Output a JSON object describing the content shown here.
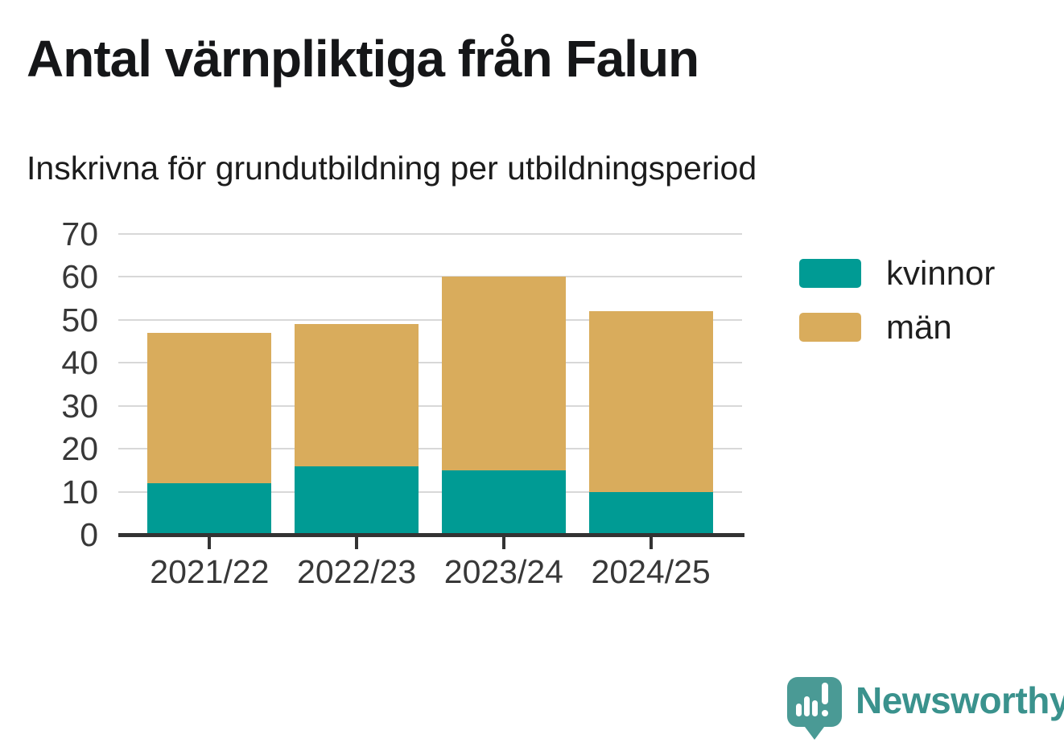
{
  "header": {
    "title": "Antal värnpliktiga från Falun",
    "subtitle": "Inskrivna för grundutbildning per utbildningsperiod"
  },
  "chart_data": {
    "type": "bar",
    "stacked": true,
    "title": "Antal värnpliktiga från Falun",
    "subtitle": "Inskrivna för grundutbildning per utbildningsperiod",
    "categories": [
      "2021/22",
      "2022/23",
      "2023/24",
      "2024/25"
    ],
    "series": [
      {
        "name": "kvinnor",
        "color": "#009b94",
        "values": [
          12,
          16,
          15,
          10
        ]
      },
      {
        "name": "män",
        "color": "#d9ac5c",
        "values": [
          35,
          33,
          45,
          42
        ]
      }
    ],
    "stack_totals": [
      47,
      49,
      60,
      52
    ],
    "xlabel": "",
    "ylabel": "",
    "ylim": [
      0,
      70
    ],
    "yticks": [
      0,
      10,
      20,
      30,
      40,
      50,
      60,
      70
    ],
    "grid": "horizontal",
    "grid_color": "#d8d8d8",
    "axis_color": "#333333",
    "tick_label_color": "#383838",
    "legend_position": "right-of-plot"
  },
  "branding": {
    "wordmark": "Newsworthy",
    "icon": "newsworthy-speech-bubble-bar-chart-icon",
    "icon_color": "#4a9a95",
    "text_color": "#3a928d"
  }
}
